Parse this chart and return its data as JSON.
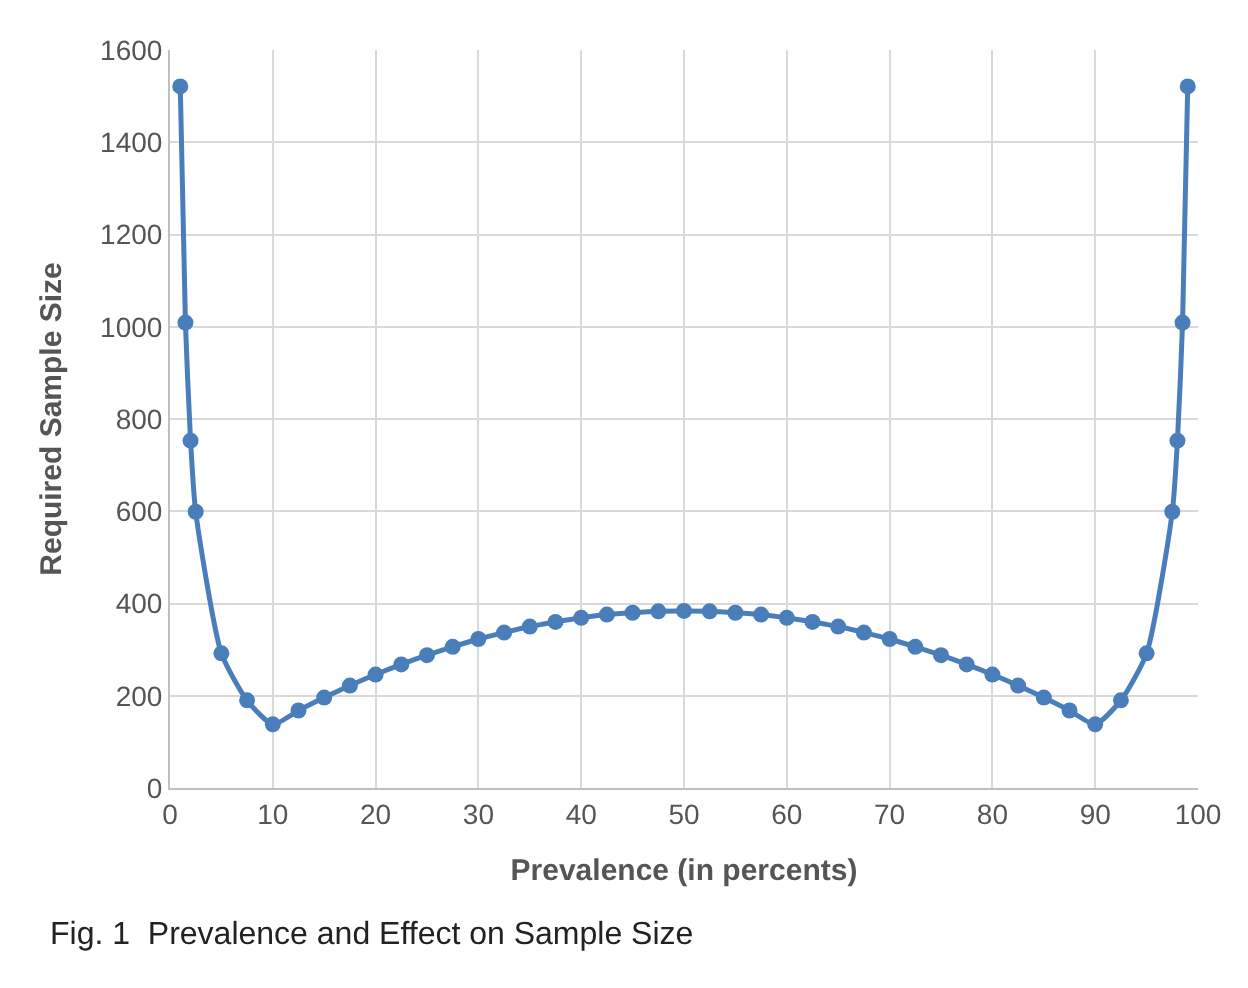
{
  "chart_data": {
    "type": "line",
    "xlabel": "Prevalence (in percents)",
    "ylabel": "Required Sample Size",
    "annotations": [
      "Fig. 1  Prevalence and Effect on Sample Size"
    ],
    "x": [
      1,
      1.5,
      2,
      2.5,
      5,
      7.5,
      10,
      12.5,
      15,
      17.5,
      20,
      22.5,
      25,
      27.5,
      30,
      32.5,
      35,
      37.5,
      40,
      42.5,
      45,
      47.5,
      50,
      52.5,
      55,
      57.5,
      60,
      62.5,
      65,
      67.5,
      70,
      72.5,
      75,
      77.5,
      80,
      82.5,
      85,
      87.5,
      90,
      92.5,
      95,
      97.5,
      98,
      98.5,
      99
    ],
    "series": [
      {
        "color": "#4a7ebb",
        "values": [
          1521,
          1009,
          753,
          599,
          292,
          190,
          138,
          168,
          196,
          222,
          246,
          268,
          288,
          306,
          323,
          337,
          350,
          360,
          369,
          376,
          380,
          383,
          384,
          383,
          380,
          376,
          369,
          360,
          350,
          337,
          323,
          306,
          288,
          268,
          246,
          222,
          196,
          168,
          138,
          190,
          292,
          599,
          753,
          1009,
          1521
        ]
      }
    ],
    "xlim": [
      0,
      100
    ],
    "xticks": [
      0,
      10,
      20,
      30,
      40,
      50,
      60,
      70,
      80,
      90,
      100
    ],
    "ylim": [
      0,
      1600
    ],
    "yticks": [
      0,
      200,
      400,
      600,
      800,
      1000,
      1200,
      1400,
      1600
    ],
    "grid": true,
    "marker": "circle",
    "line_style": "solid",
    "legend": false
  }
}
